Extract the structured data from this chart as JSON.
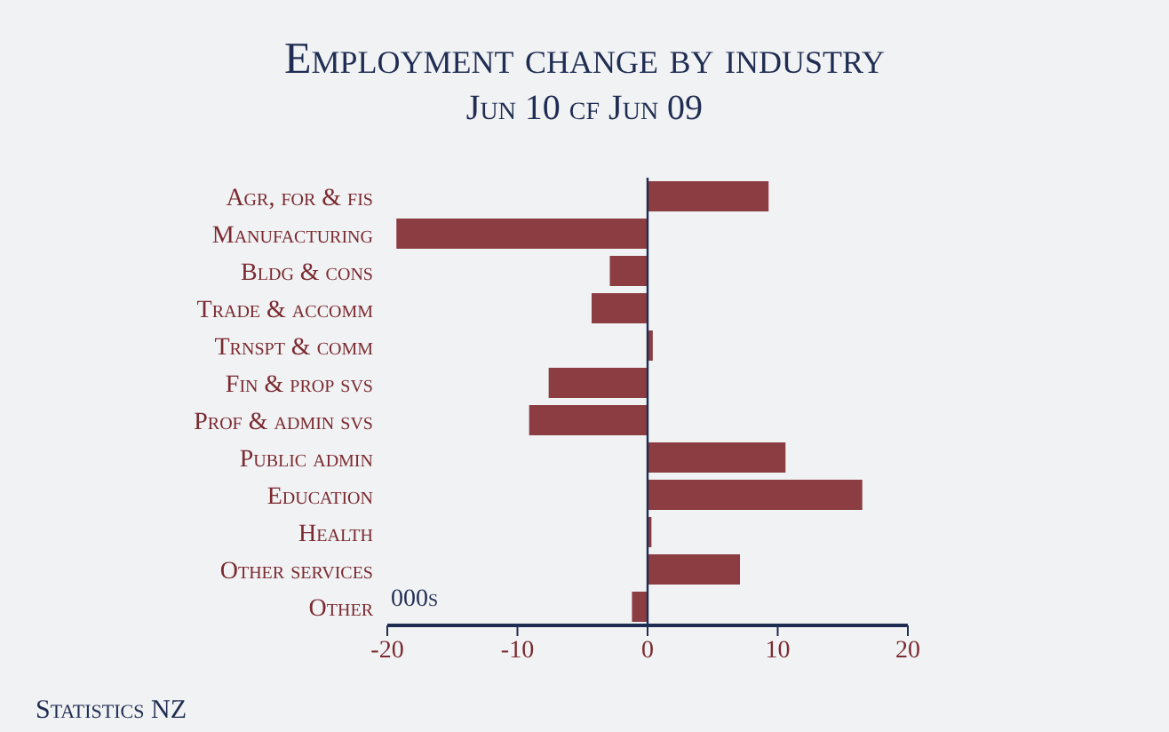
{
  "chart_data": {
    "type": "bar",
    "orientation": "horizontal",
    "title": "Employment change by industry",
    "subtitle": "Jun 10 cf Jun 09",
    "categories": [
      "Agr, for & fis",
      "Manufacturing",
      "Bldg & cons",
      "Trade & accomm",
      "Trnspt & comm",
      "Fin & prop svs",
      "Prof & admin svs",
      "Public admin",
      "Education",
      "Health",
      "Other services",
      "Other"
    ],
    "values": [
      9.3,
      -19.3,
      -2.9,
      -4.3,
      0.4,
      -7.6,
      -9.1,
      10.6,
      16.5,
      0.3,
      7.1,
      -1.2
    ],
    "color": "#8b3d42",
    "xlim": [
      -20,
      20
    ],
    "xticks": [
      -20,
      -10,
      0,
      10,
      20
    ],
    "ref_lines": [
      {
        "axis": "x",
        "value": 0,
        "color": "#1f2d52"
      }
    ],
    "annotations": [
      "000s",
      "Statistics NZ"
    ],
    "grid": false,
    "legend": false
  }
}
